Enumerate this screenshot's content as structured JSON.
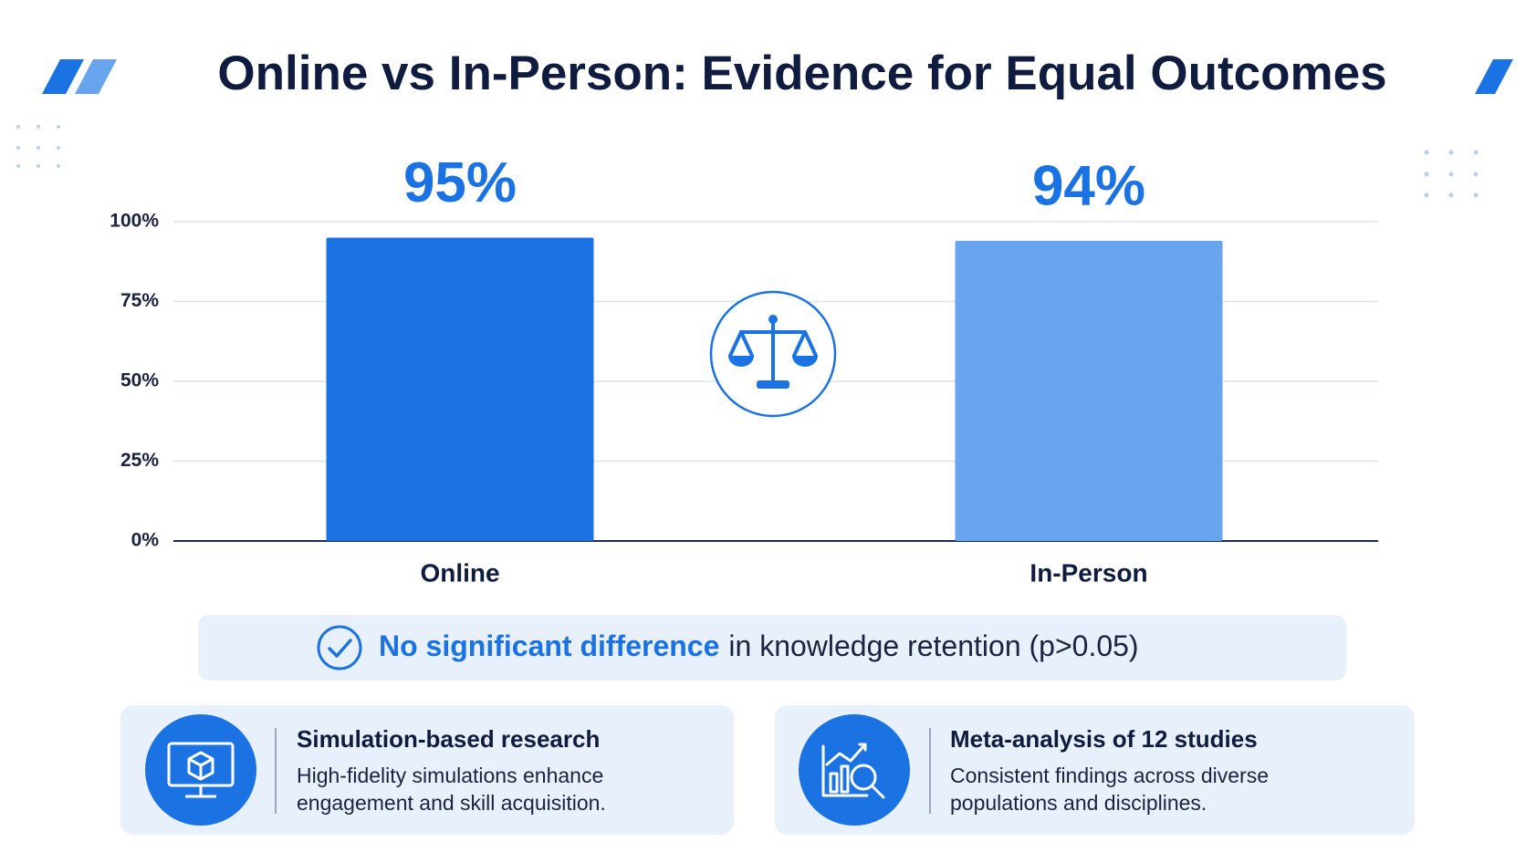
{
  "chart_data": {
    "type": "bar",
    "title": "Online vs In-Person: Evidence for Equal Outcomes",
    "categories": [
      "Online",
      "In-Person"
    ],
    "values": [
      95,
      94
    ],
    "value_labels": [
      "95%",
      "94%"
    ],
    "colors": [
      "#1b72e2",
      "#69a4ef"
    ],
    "ylim": [
      0,
      100
    ],
    "yticks": [
      {
        "value": 0,
        "label": "0%"
      },
      {
        "value": 25,
        "label": "25%"
      },
      {
        "value": 50,
        "label": "50%"
      },
      {
        "value": 75,
        "label": "75%"
      },
      {
        "value": 100,
        "label": "100%"
      }
    ],
    "grid": true
  },
  "callout": {
    "highlight": "No significant difference",
    "text": "in knowledge retention (p>0.05)"
  },
  "cards": [
    {
      "title": "Simulation-based research",
      "description": [
        "High-fidelity simulations enhance",
        "engagement and skill acquisition."
      ]
    },
    {
      "title": "Meta-analysis of 12 studies",
      "description": [
        "Consistent findings across diverse",
        "populations and disciplines."
      ]
    }
  ]
}
